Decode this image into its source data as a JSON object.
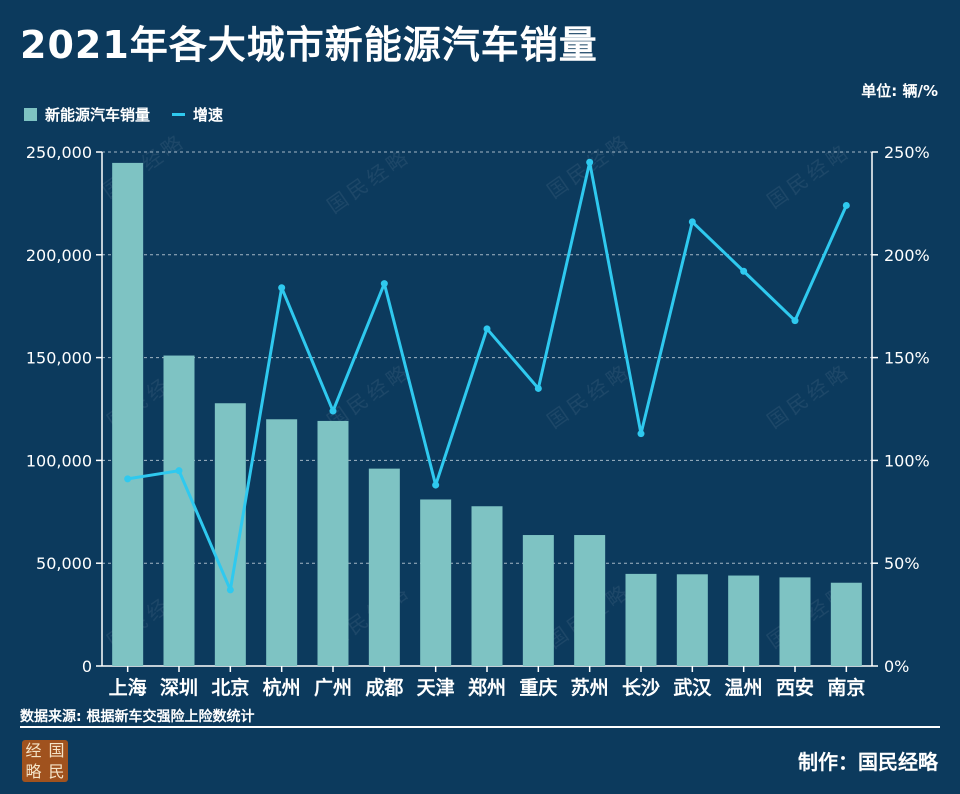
{
  "title": "2021年各大城市新能源汽车销量",
  "unit_label": "单位: 辆/%",
  "legend": {
    "bar_label": "新能源汽车销量",
    "line_label": "增速"
  },
  "source": "数据来源: 根据新车交强险上险数统计",
  "credit": "制作：国民经略",
  "logo": {
    "c1": "经",
    "c2": "国",
    "c3": "略",
    "c4": "民"
  },
  "watermark": "国民经略",
  "colors": {
    "background": "#0c3a5d",
    "bar": "#7ec3c3",
    "line": "#2fc9ef",
    "grid": "#c9d6e0"
  },
  "chart_data": {
    "type": "bar",
    "title": "2021年各大城市新能源汽车销量",
    "categories": [
      "上海",
      "深圳",
      "北京",
      "杭州",
      "广州",
      "成都",
      "天津",
      "郑州",
      "重庆",
      "苏州",
      "长沙",
      "武汉",
      "温州",
      "西安",
      "南京"
    ],
    "series": [
      {
        "name": "新能源汽车销量",
        "type": "bar",
        "axis": "left",
        "values": [
          244700,
          151000,
          127800,
          120000,
          119200,
          96000,
          81000,
          77700,
          63700,
          63700,
          44800,
          44600,
          44000,
          43100,
          40500
        ]
      },
      {
        "name": "增速",
        "type": "line",
        "axis": "right",
        "values": [
          91,
          95,
          37,
          184,
          124,
          186,
          88,
          164,
          135,
          245,
          113,
          216,
          192,
          168,
          224
        ]
      }
    ],
    "left_axis": {
      "ylim": [
        0,
        250000
      ],
      "ticks": [
        "0",
        "50,000",
        "100,000",
        "150,000",
        "200,000",
        "250,000"
      ]
    },
    "right_axis": {
      "ylim": [
        0,
        250
      ],
      "ticks": [
        "0%",
        "50%",
        "100%",
        "150%",
        "200%",
        "250%"
      ]
    },
    "grid": true,
    "legend_position": "top-left"
  }
}
